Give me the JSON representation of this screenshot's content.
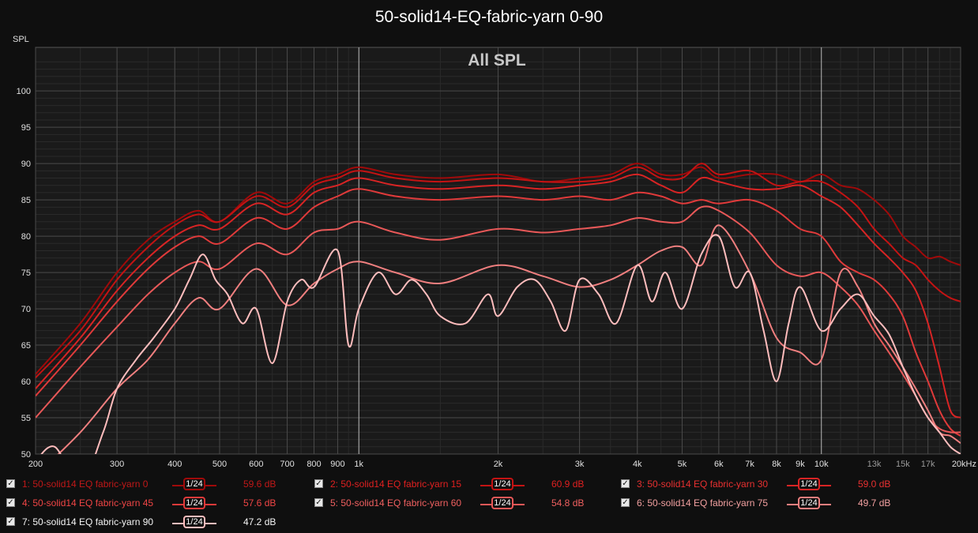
{
  "chart_data": {
    "type": "line",
    "title": "50-solid14-EQ-fabric-yarn 0-90",
    "subtitle": "All SPL",
    "ylabel": "SPL",
    "xlim": [
      200,
      20000
    ],
    "ylim": [
      50,
      106
    ],
    "x_scale": "log",
    "grid": true,
    "x_ticks": [
      {
        "v": 200,
        "t": "200"
      },
      {
        "v": 300,
        "t": "300"
      },
      {
        "v": 400,
        "t": "400"
      },
      {
        "v": 500,
        "t": "500"
      },
      {
        "v": 600,
        "t": "600"
      },
      {
        "v": 700,
        "t": "700"
      },
      {
        "v": 800,
        "t": "800"
      },
      {
        "v": 900,
        "t": "900"
      },
      {
        "v": 1000,
        "t": "1k"
      },
      {
        "v": 2000,
        "t": "2k"
      },
      {
        "v": 3000,
        "t": "3k"
      },
      {
        "v": 4000,
        "t": "4k"
      },
      {
        "v": 5000,
        "t": "5k"
      },
      {
        "v": 6000,
        "t": "6k"
      },
      {
        "v": 7000,
        "t": "7k"
      },
      {
        "v": 8000,
        "t": "8k"
      },
      {
        "v": 9000,
        "t": "9k"
      },
      {
        "v": 10000,
        "t": "10k"
      },
      {
        "v": 13000,
        "t": "13k"
      },
      {
        "v": 15000,
        "t": "15k"
      },
      {
        "v": 17000,
        "t": "17k"
      },
      {
        "v": 20000,
        "t": "20kHz"
      }
    ],
    "y_ticks": [
      50,
      55,
      60,
      65,
      70,
      75,
      80,
      85,
      90,
      95,
      100
    ],
    "colors": {
      "background": "#0f0f0f",
      "plot_bg": "#1a1a1a",
      "grid_major": "#4a4a4a",
      "grid_minor": "#2a2a2a",
      "decade_line": "#b8b8b8"
    },
    "series": [
      {
        "name": "1: 50-solid14 EQ fabric-yarn 0",
        "color": "#a00a0a",
        "label_color": "#c01818",
        "smoothing": "1/24",
        "value": "59.6 dB",
        "x": [
          200,
          250,
          300,
          350,
          400,
          450,
          500,
          600,
          700,
          800,
          900,
          1000,
          1200,
          1500,
          2000,
          2500,
          3000,
          3500,
          4000,
          4500,
          5000,
          5500,
          6000,
          7000,
          8000,
          9000,
          10000,
          11000,
          12000,
          13000,
          14000,
          15000,
          16000,
          17000,
          18000,
          19000,
          20000
        ],
        "y": [
          61,
          68,
          75,
          79.5,
          82,
          83.5,
          82,
          86,
          84.5,
          87.5,
          88.5,
          89.5,
          88.5,
          88,
          88.5,
          87.5,
          88,
          88.5,
          90,
          88.5,
          88.5,
          89.5,
          88,
          88.5,
          88.5,
          87.5,
          88.5,
          87,
          86.5,
          85,
          83,
          80,
          78.5,
          77,
          77.2,
          76.5,
          76
        ]
      },
      {
        "name": "2: 50-solid14 EQ fabric-yarn 15",
        "color": "#c41313",
        "label_color": "#e02020",
        "smoothing": "1/24",
        "value": "60.9 dB",
        "x": [
          200,
          250,
          300,
          350,
          400,
          450,
          500,
          600,
          700,
          800,
          900,
          1000,
          1200,
          1500,
          2000,
          2500,
          3000,
          3500,
          4000,
          4500,
          5000,
          5500,
          6000,
          7000,
          8000,
          9000,
          10000,
          11000,
          12000,
          13000,
          14000,
          15000,
          16000,
          17000,
          18000,
          19000,
          20000
        ],
        "y": [
          60.5,
          67,
          74,
          78.5,
          81.5,
          83,
          82,
          85.5,
          84,
          87,
          88,
          89,
          88,
          87.5,
          88,
          87.5,
          87.5,
          88,
          89.5,
          88,
          88,
          90,
          88.5,
          89,
          87,
          87.5,
          87.5,
          86,
          84,
          81,
          79,
          77,
          76,
          74,
          72.5,
          71.5,
          71
        ]
      },
      {
        "name": "3: 50-solid14 EQ fabric-yarn 30",
        "color": "#d82424",
        "label_color": "#e83030",
        "smoothing": "1/24",
        "value": "59.0 dB",
        "x": [
          200,
          250,
          300,
          350,
          400,
          450,
          500,
          600,
          700,
          800,
          900,
          1000,
          1200,
          1500,
          2000,
          2500,
          3000,
          3500,
          4000,
          4500,
          5000,
          5500,
          6000,
          7000,
          8000,
          9000,
          10000,
          11000,
          12000,
          13000,
          14000,
          15000,
          16000,
          17000,
          18000,
          19000,
          20000
        ],
        "y": [
          59,
          66,
          72.5,
          77,
          80,
          81.5,
          81,
          84.5,
          83,
          86,
          87,
          88,
          87,
          86.5,
          87,
          86.5,
          87,
          87.5,
          88.5,
          87,
          86,
          88,
          87.5,
          86.5,
          86.5,
          87,
          85.5,
          84,
          81.5,
          79,
          77,
          75,
          72.5,
          68,
          62,
          56,
          55
        ]
      },
      {
        "name": "4: 50-solid14 EQ fabric-yarn 45",
        "color": "#e03a3a",
        "label_color": "#f04545",
        "smoothing": "1/24",
        "value": "57.6 dB",
        "x": [
          200,
          250,
          300,
          350,
          400,
          450,
          500,
          600,
          700,
          800,
          900,
          1000,
          1200,
          1500,
          2000,
          2500,
          3000,
          3500,
          4000,
          4500,
          5000,
          5500,
          6000,
          7000,
          8000,
          9000,
          10000,
          11000,
          12000,
          13000,
          14000,
          15000,
          16000,
          17000,
          18000,
          19000,
          20000
        ],
        "y": [
          58,
          65,
          71,
          75.5,
          78.5,
          80,
          79,
          82.5,
          81,
          84,
          85.5,
          86.5,
          85.5,
          85,
          85.5,
          85,
          85.5,
          85,
          86,
          85.5,
          84.5,
          85,
          84.5,
          85,
          83.5,
          81,
          80,
          76.5,
          75,
          74,
          72,
          69,
          64,
          60,
          56,
          53.5,
          52.5
        ]
      },
      {
        "name": "5: 50-solid14 EQ fabric-yarn 60",
        "color": "#e85858",
        "label_color": "#f06060",
        "smoothing": "1/24",
        "value": "54.8 dB",
        "x": [
          200,
          250,
          300,
          350,
          400,
          450,
          500,
          600,
          700,
          800,
          900,
          1000,
          1200,
          1500,
          2000,
          2500,
          3000,
          3500,
          4000,
          4500,
          5000,
          5500,
          6000,
          7000,
          8000,
          9000,
          10000,
          11000,
          12000,
          13000,
          14000,
          15000,
          16000,
          17000,
          18000,
          19000,
          20000
        ],
        "y": [
          55,
          62,
          67.5,
          72,
          75,
          76.5,
          75.5,
          79,
          77.5,
          80.5,
          81,
          82,
          80.5,
          79.5,
          81,
          80.5,
          81,
          81.5,
          82.5,
          82,
          82,
          84,
          83.5,
          80.5,
          76,
          74.5,
          75,
          73,
          70.5,
          67,
          64,
          61,
          58,
          55,
          53.5,
          53,
          53
        ]
      },
      {
        "name": "6: 50-solid14 EQ fabric-yarn 75",
        "color": "#f07f7f",
        "label_color": "#f2a0a0",
        "smoothing": "1/24",
        "value": "49.7 dB",
        "x": [
          200,
          250,
          300,
          350,
          400,
          450,
          500,
          600,
          700,
          800,
          900,
          1000,
          1200,
          1500,
          2000,
          2500,
          3000,
          3500,
          4000,
          4500,
          5000,
          5500,
          6000,
          7000,
          8000,
          9000,
          10000,
          11000,
          12000,
          13000,
          14000,
          15000,
          16000,
          17000,
          18000,
          19000,
          20000
        ],
        "y": [
          47,
          53,
          59,
          63,
          68,
          71.5,
          70,
          75.5,
          70.5,
          73.5,
          75.5,
          76.5,
          75,
          73.5,
          76,
          74.5,
          73,
          74,
          76,
          78,
          78.5,
          76,
          81.5,
          75,
          66,
          64,
          63,
          75,
          73,
          68,
          65,
          62,
          59,
          56,
          53,
          52.5,
          51.5
        ]
      },
      {
        "name": "7: 50-solid14 EQ fabric-yarn 90",
        "color": "#ffbdbd",
        "label_color": "#f5f5f5",
        "smoothing": "1/24",
        "value": "47.2 dB",
        "x": [
          200,
          220,
          250,
          280,
          300,
          330,
          360,
          400,
          430,
          460,
          490,
          520,
          560,
          600,
          650,
          700,
          750,
          800,
          900,
          950,
          1000,
          1100,
          1200,
          1300,
          1400,
          1500,
          1700,
          1900,
          2000,
          2200,
          2400,
          2600,
          2800,
          3000,
          3300,
          3600,
          4000,
          4300,
          4600,
          5000,
          5500,
          6000,
          6500,
          7000,
          7500,
          8000,
          8500,
          9000,
          10000,
          11000,
          12000,
          13000,
          14000,
          15000,
          16000,
          17000,
          18000,
          19000,
          20000
        ],
        "y": [
          49,
          51,
          46,
          53,
          59,
          63,
          66,
          70,
          74,
          77.5,
          74,
          72,
          68,
          70,
          62.5,
          71,
          74,
          73,
          78,
          65,
          70,
          75,
          72,
          74,
          72,
          69,
          68,
          72,
          69,
          73,
          74,
          71,
          67,
          74,
          72,
          68,
          76,
          71,
          75,
          70,
          77.5,
          80,
          73,
          75,
          67,
          60,
          68,
          73,
          67,
          70,
          72,
          69,
          66.5,
          62,
          58,
          55,
          53,
          51,
          50
        ]
      }
    ]
  }
}
